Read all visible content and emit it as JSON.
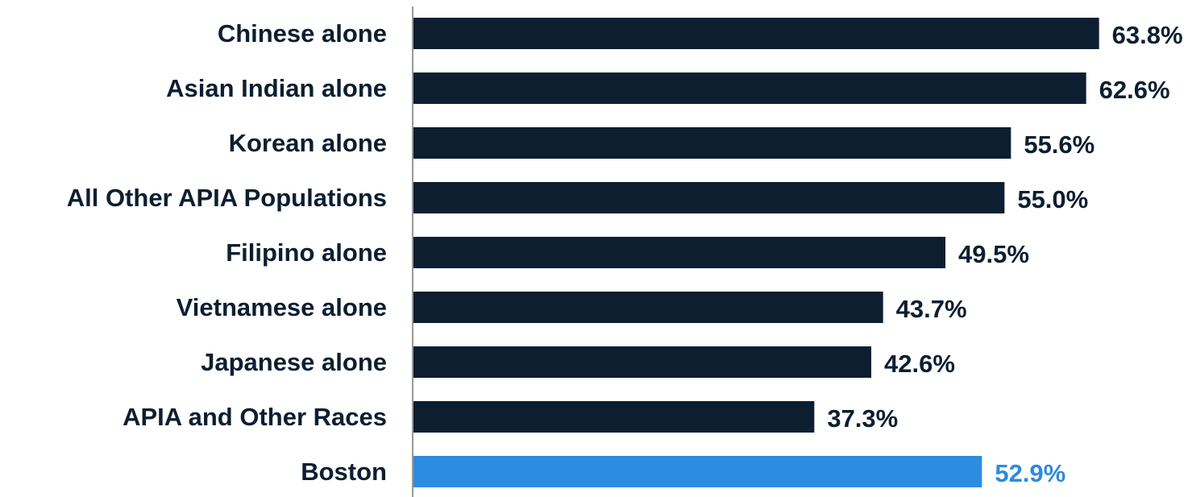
{
  "chart_data": {
    "type": "bar",
    "orientation": "horizontal",
    "title": "",
    "xlabel": "",
    "ylabel": "",
    "xlim": [
      0,
      64.5
    ],
    "grid": false,
    "legend": "none",
    "categories": [
      "Chinese alone",
      "Asian Indian alone",
      "Korean alone",
      "All Other APIA Populations",
      "Filipino alone",
      "Vietnamese alone",
      "Japanese alone",
      "APIA and Other Races",
      "Boston"
    ],
    "values": [
      63.8,
      62.6,
      55.6,
      55.0,
      49.5,
      43.7,
      42.6,
      37.3,
      52.9
    ],
    "value_labels": [
      "63.8%",
      "62.6%",
      "55.6%",
      "55.0%",
      "49.5%",
      "43.7%",
      "42.6%",
      "37.3%",
      "52.9%"
    ],
    "colors": {
      "default_bar": "#0c1e30",
      "highlight_bar": "#2b8ce0",
      "category_text": "#0c1e30",
      "axis_line": "#999999"
    },
    "highlight_category": "Boston"
  }
}
